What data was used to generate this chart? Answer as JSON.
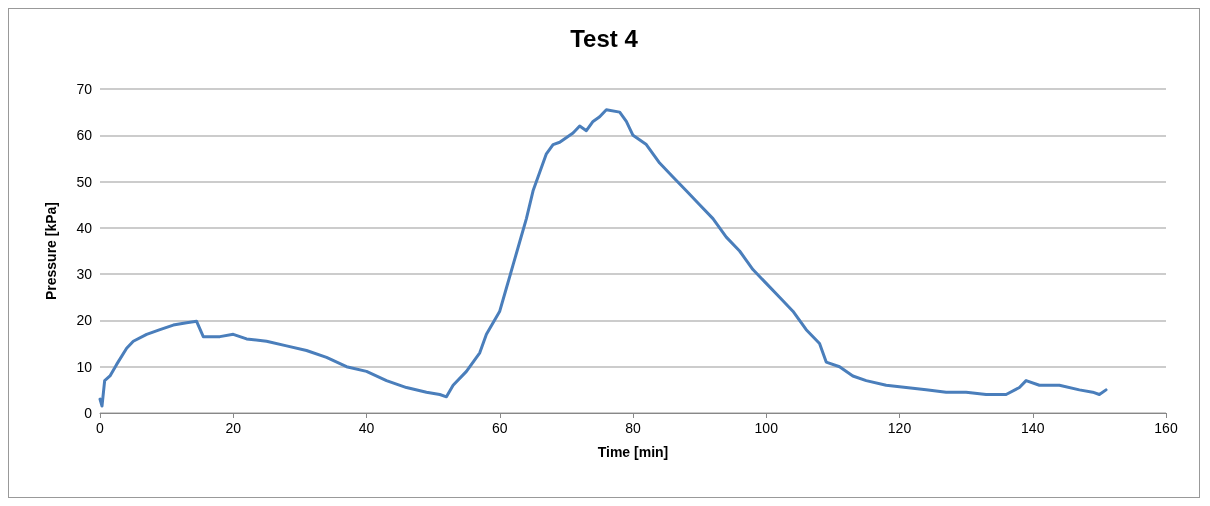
{
  "chart_data": {
    "type": "line",
    "title": "Test 4",
    "xlabel": "Time [min]",
    "ylabel": "Pressure [kPa]",
    "xlim": [
      0,
      160
    ],
    "xticks": [
      0,
      20,
      40,
      60,
      80,
      100,
      120,
      140,
      160
    ],
    "ylim": [
      0,
      70
    ],
    "yticks": [
      0,
      10,
      20,
      30,
      40,
      50,
      60,
      70
    ],
    "grid": "y",
    "marker": "none",
    "line_style": "solid",
    "series": [
      {
        "color": "#4a7ebb",
        "x": [
          0,
          0.3,
          0.7,
          1.5,
          2.5,
          4,
          5,
          7,
          9,
          11,
          13,
          14.5,
          15.5,
          18,
          20,
          22,
          25,
          28,
          31,
          34,
          37,
          40,
          43,
          46,
          49,
          51,
          52,
          53,
          55,
          57,
          58,
          60,
          61,
          62,
          63,
          64,
          65,
          66,
          67,
          68,
          69,
          71,
          72,
          73,
          74,
          75,
          76,
          78,
          79,
          80,
          82,
          84,
          86,
          88,
          90,
          92,
          94,
          96,
          98,
          100,
          102,
          104,
          106,
          108,
          109,
          111,
          113,
          115,
          118,
          121,
          124,
          127,
          130,
          133,
          136,
          138,
          139,
          141,
          144,
          147,
          149,
          150,
          151
        ],
        "values": [
          3,
          1.5,
          7,
          8,
          10.5,
          14,
          15.5,
          17,
          18,
          19,
          19.5,
          19.8,
          16.5,
          16.5,
          17,
          16,
          15.5,
          14.5,
          13.5,
          12,
          10,
          9,
          7,
          5.5,
          4.5,
          4,
          3.5,
          6,
          9,
          13,
          17,
          22,
          27,
          32,
          37,
          42,
          48,
          52,
          56,
          58,
          58.5,
          60.5,
          62,
          61,
          63,
          64,
          65.5,
          65,
          63,
          60,
          58,
          54,
          51,
          48,
          45,
          42,
          38,
          35,
          31,
          28,
          25,
          22,
          18,
          15,
          11,
          10,
          8,
          7,
          6,
          5.5,
          5,
          4.5,
          4.5,
          4,
          4,
          5.5,
          7,
          6,
          6,
          5,
          4.5,
          4,
          5
        ]
      }
    ]
  }
}
